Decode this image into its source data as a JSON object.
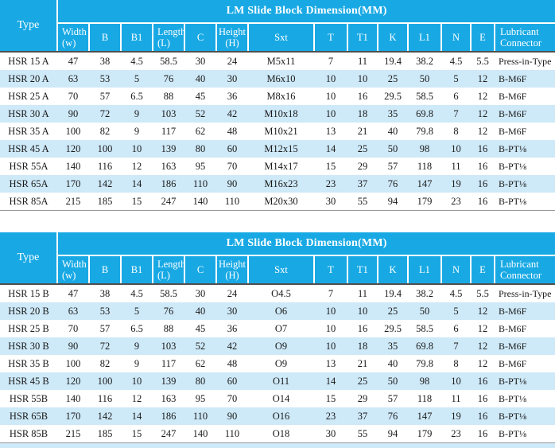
{
  "colors": {
    "header_bg": "#18a9e4",
    "header_text": "#ffffff",
    "row_alt_bg": "#cee9f8",
    "body_text": "#1a1a1a",
    "header_divider": "#4f4f4f"
  },
  "tables": [
    {
      "title": "LM Slide Block Dimension(MM)",
      "corner_label": "Type",
      "columns": [
        "Width\n(w)",
        "B",
        "B1",
        "Length\n(L)",
        "C",
        "Height\n(H)",
        "Sxt",
        "T",
        "T1",
        "K",
        "L1",
        "N",
        "E",
        "Lubricant\nConnector"
      ],
      "rows": [
        [
          "HSR 15 A",
          "47",
          "38",
          "4.5",
          "58.5",
          "30",
          "24",
          "M5x11",
          "7",
          "11",
          "19.4",
          "38.2",
          "4.5",
          "5.5",
          "Press-in-Type"
        ],
        [
          "HSR 20 A",
          "63",
          "53",
          "5",
          "76",
          "40",
          "30",
          "M6x10",
          "10",
          "10",
          "25",
          "50",
          "5",
          "12",
          "B-M6F"
        ],
        [
          "HSR 25 A",
          "70",
          "57",
          "6.5",
          "88",
          "45",
          "36",
          "M8x16",
          "10",
          "16",
          "29.5",
          "58.5",
          "6",
          "12",
          "B-M6F"
        ],
        [
          "HSR 30 A",
          "90",
          "72",
          "9",
          "103",
          "52",
          "42",
          "M10x18",
          "10",
          "18",
          "35",
          "69.8",
          "7",
          "12",
          "B-M6F"
        ],
        [
          "HSR 35 A",
          "100",
          "82",
          "9",
          "117",
          "62",
          "48",
          "M10x21",
          "13",
          "21",
          "40",
          "79.8",
          "8",
          "12",
          "B-M6F"
        ],
        [
          "HSR 45 A",
          "120",
          "100",
          "10",
          "139",
          "80",
          "60",
          "M12x15",
          "14",
          "25",
          "50",
          "98",
          "10",
          "16",
          "B-PT⅛"
        ],
        [
          "HSR 55A",
          "140",
          "116",
          "12",
          "163",
          "95",
          "70",
          "M14x17",
          "15",
          "29",
          "57",
          "118",
          "11",
          "16",
          "B-PT⅛"
        ],
        [
          "HSR 65A",
          "170",
          "142",
          "14",
          "186",
          "110",
          "90",
          "M16x23",
          "23",
          "37",
          "76",
          "147",
          "19",
          "16",
          "B-PT⅛"
        ],
        [
          "HSR 85A",
          "215",
          "185",
          "15",
          "247",
          "140",
          "110",
          "M20x30",
          "30",
          "55",
          "94",
          "179",
          "23",
          "16",
          "B-PT⅛"
        ]
      ]
    },
    {
      "title": "LM Slide Block Dimension(MM)",
      "corner_label": "Type",
      "columns": [
        "Width\n(w)",
        "B",
        "B1",
        "Length\n(L)",
        "C",
        "Height\n(H)",
        "Sxt",
        "T",
        "T1",
        "K",
        "L1",
        "N",
        "E",
        "Lubricant\nConnector"
      ],
      "rows": [
        [
          "HSR 15 B",
          "47",
          "38",
          "4.5",
          "58.5",
          "30",
          "24",
          "O4.5",
          "7",
          "11",
          "19.4",
          "38.2",
          "4.5",
          "5.5",
          "Press-in-Type"
        ],
        [
          "HSR 20 B",
          "63",
          "53",
          "5",
          "76",
          "40",
          "30",
          "O6",
          "10",
          "10",
          "25",
          "50",
          "5",
          "12",
          "B-M6F"
        ],
        [
          "HSR 25 B",
          "70",
          "57",
          "6.5",
          "88",
          "45",
          "36",
          "O7",
          "10",
          "16",
          "29.5",
          "58.5",
          "6",
          "12",
          "B-M6F"
        ],
        [
          "HSR 30 B",
          "90",
          "72",
          "9",
          "103",
          "52",
          "42",
          "O9",
          "10",
          "18",
          "35",
          "69.8",
          "7",
          "12",
          "B-M6F"
        ],
        [
          "HSR 35 B",
          "100",
          "82",
          "9",
          "117",
          "62",
          "48",
          "O9",
          "13",
          "21",
          "40",
          "79.8",
          "8",
          "12",
          "B-M6F"
        ],
        [
          "HSR 45 B",
          "120",
          "100",
          "10",
          "139",
          "80",
          "60",
          "O11",
          "14",
          "25",
          "50",
          "98",
          "10",
          "16",
          "B-PT⅛"
        ],
        [
          "HSR 55B",
          "140",
          "116",
          "12",
          "163",
          "95",
          "70",
          "O14",
          "15",
          "29",
          "57",
          "118",
          "11",
          "16",
          "B-PT⅛"
        ],
        [
          "HSR 65B",
          "170",
          "142",
          "14",
          "186",
          "110",
          "90",
          "O16",
          "23",
          "37",
          "76",
          "147",
          "19",
          "16",
          "B-PT⅛"
        ],
        [
          "HSR 85B",
          "215",
          "185",
          "15",
          "247",
          "140",
          "110",
          "O18",
          "30",
          "55",
          "94",
          "179",
          "23",
          "16",
          "B-PT⅛"
        ]
      ]
    }
  ]
}
